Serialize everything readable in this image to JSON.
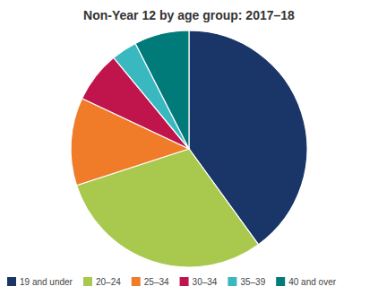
{
  "chart_data": {
    "type": "pie",
    "title": "Non-Year 12 by age group: 2017–18",
    "categories": [
      "19 and under",
      "20–24",
      "25–34",
      "30–34",
      "35–39",
      "40 and over"
    ],
    "values": [
      40.0,
      30.0,
      12.0,
      7.0,
      3.5,
      7.5
    ],
    "colors": [
      "#1a3668",
      "#a8c84e",
      "#f07c2a",
      "#c0144c",
      "#3ab8c0",
      "#007b7a"
    ],
    "legend": "lower left"
  }
}
